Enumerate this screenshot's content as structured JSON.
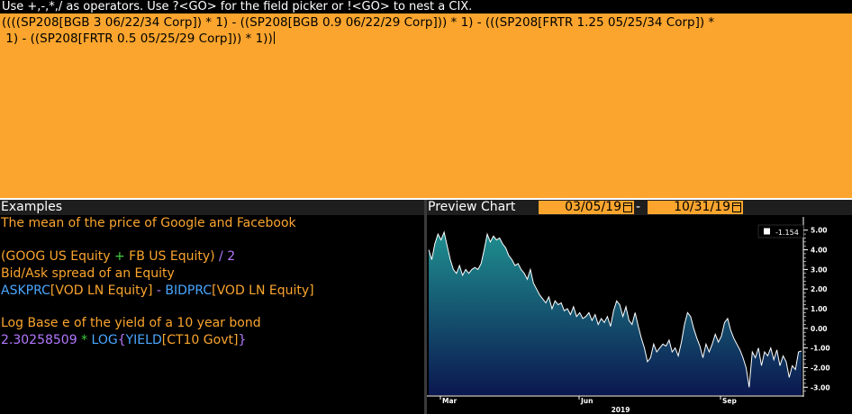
{
  "hint": "Use +,-,*,/ as operators. Use ?<GO> for the field picker or !<GO> to nest a CIX.",
  "formula": {
    "line1": "((((SP208[BGB 3 06/22/34 Corp]) * 1) - ((SP208[BGB 0.9 06/22/29 Corp])) * 1) - (((SP208[FRTR 1.25 05/25/34 Corp]) *",
    "line2": " 1) - ((SP208[FRTR 0.5 05/25/29 Corp])) * 1))"
  },
  "examples": {
    "header": "Examples",
    "ex1_desc": "The mean of the price of Google and Facebook",
    "ex1_open": "(",
    "ex1_goog": "GOOG US Equity",
    "ex1_plus": " + ",
    "ex1_fb": "FB US Equity",
    "ex1_close": ")",
    "ex1_div": " / 2",
    "ex2_desc": "Bid/Ask spread of an Equity",
    "ex2_ask": "ASKPRC",
    "ex2_sec1": "[VOD LN Equity]",
    "ex2_minus": " - ",
    "ex2_bid": "BIDPRC",
    "ex2_sec2": "[VOD LN Equity]",
    "ex3_desc": "Log Base e of the yield of a 10 year bond",
    "ex3_const": "2.30258509",
    "ex3_times": " * ",
    "ex3_log": "LOG",
    "ex3_ob": "{",
    "ex3_yield": "YIELD",
    "ex3_sec": "[CT10 Govt]",
    "ex3_cb": "}"
  },
  "chart": {
    "title": "Preview Chart",
    "start_date": "03/05/19",
    "end_date": "10/31/19",
    "date_sep": "-",
    "last_value_label": "-1.154"
  },
  "colors": {
    "accent": "#fba52e",
    "area_top": "#1f8f8f",
    "area_bottom": "#0b1850",
    "axis": "#ffffff"
  },
  "chart_data": {
    "type": "area",
    "x_ticks": [
      "Mar",
      "Jun",
      "Sep"
    ],
    "year_label": "2019",
    "ylim": [
      -3.4,
      5.4
    ],
    "y_ticks": [
      5,
      4,
      3,
      2,
      1,
      0,
      -1,
      -2,
      -3
    ],
    "y_tick_labels": [
      "5.00",
      "4.00",
      "3.00",
      "2.00",
      "1.00",
      "0.00",
      "-1.00",
      "-2.00",
      "-3.00"
    ],
    "last_value": -1.154,
    "series": [
      {
        "values": [
          4.0,
          3.5,
          4.3,
          4.8,
          4.5,
          4.9,
          4.2,
          3.5,
          3.0,
          2.8,
          3.2,
          2.7,
          3.0,
          2.8,
          3.0,
          3.1,
          3.0,
          3.3,
          4.0,
          4.8,
          4.4,
          4.7,
          4.5,
          4.6,
          4.3,
          4.1,
          3.7,
          3.5,
          3.2,
          3.3,
          3.0,
          2.8,
          2.5,
          3.0,
          2.3,
          2.0,
          1.7,
          1.5,
          1.3,
          1.6,
          1.0,
          1.4,
          1.2,
          1.3,
          0.9,
          1.0,
          0.7,
          1.1,
          0.6,
          0.8,
          0.5,
          0.6,
          0.8,
          0.4,
          0.7,
          0.2,
          0.5,
          0.3,
          0.6,
          0.1,
          0.9,
          1.4,
          1.2,
          0.6,
          1.1,
          0.4,
          0.2,
          0.8,
          0.1,
          -0.5,
          -1.0,
          -1.7,
          -1.5,
          -0.8,
          -1.2,
          -1.0,
          -0.8,
          -0.9,
          -0.6,
          -1.2,
          -1.0,
          -1.4,
          -0.7,
          0.2,
          0.8,
          0.6,
          0.0,
          -0.5,
          -0.9,
          -1.5,
          -0.8,
          -1.2,
          -0.8,
          -0.3,
          -0.7,
          -0.4,
          0.3,
          0.5,
          -0.1,
          -0.5,
          -0.8,
          -1.1,
          -1.5,
          -2.0,
          -3.0,
          -1.2,
          -1.5,
          -1.0,
          -1.9,
          -1.2,
          -1.4,
          -1.0,
          -1.6,
          -1.1,
          -1.9,
          -1.4,
          -1.7,
          -2.5,
          -1.9,
          -2.1,
          -1.2,
          -1.154
        ]
      }
    ]
  }
}
